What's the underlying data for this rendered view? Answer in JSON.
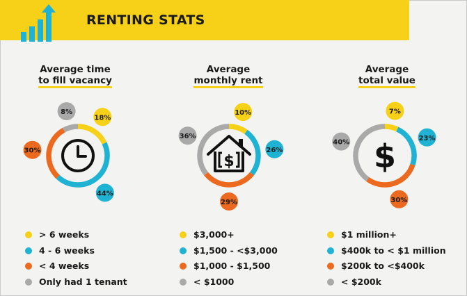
{
  "header": {
    "title": "RENTING STATS"
  },
  "colors": {
    "yellow": "#f7d018",
    "blue": "#1fb2d2",
    "orange": "#ec6a1f",
    "gray": "#a9a9a9"
  },
  "chart_data": [
    {
      "type": "donut",
      "title": [
        "Average time",
        "to fill vacancy"
      ],
      "center_icon": "clock-icon",
      "slices": [
        {
          "label": "> 6 weeks",
          "value": 18,
          "color": "#f7d018"
        },
        {
          "label": "4 - 6 weeks",
          "value": 44,
          "color": "#1fb2d2"
        },
        {
          "label": "< 4 weeks",
          "value": 30,
          "color": "#ec6a1f"
        },
        {
          "label": "Only had 1 tenant",
          "value": 8,
          "color": "#a9a9a9"
        }
      ]
    },
    {
      "type": "donut",
      "title": [
        "Average",
        "monthly rent"
      ],
      "center_icon": "house-dollar-icon",
      "slices": [
        {
          "label": "$3,000+",
          "value": 10,
          "color": "#f7d018"
        },
        {
          "label": "$1,500 - <$3,000",
          "value": 26,
          "color": "#1fb2d2"
        },
        {
          "label": "$1,000 - $1,500",
          "value": 29,
          "color": "#ec6a1f"
        },
        {
          "label": "< $1000",
          "value": 36,
          "color": "#a9a9a9"
        }
      ]
    },
    {
      "type": "donut",
      "title": [
        "Average",
        "total value"
      ],
      "center_icon": "dollar-icon",
      "slices": [
        {
          "label": "$1 million+",
          "value": 7,
          "color": "#f7d018"
        },
        {
          "label": "$400k to < $1 million",
          "value": 23,
          "color": "#1fb2d2"
        },
        {
          "label": "$200k to <$400k",
          "value": 30,
          "color": "#ec6a1f"
        },
        {
          "label": "< $200k",
          "value": 40,
          "color": "#a9a9a9"
        }
      ]
    }
  ]
}
